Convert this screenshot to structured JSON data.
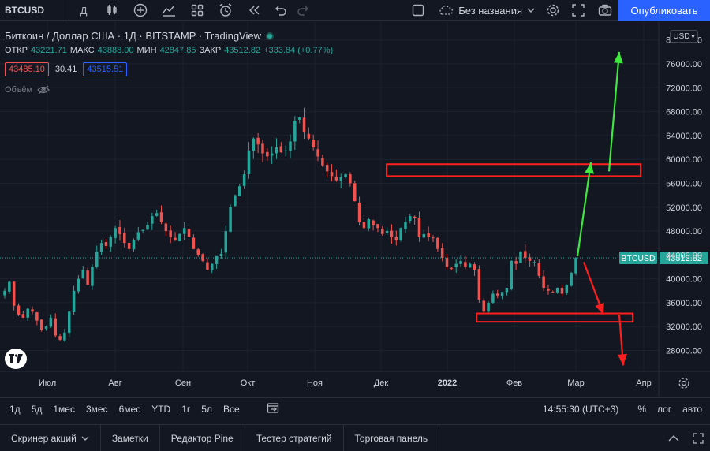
{
  "toolbar": {
    "symbol": "BTCUSD",
    "interval": "Д",
    "layout_name": "Без названия",
    "publish_label": "Опубликовать"
  },
  "legend": {
    "title": "Биткоин / Доллар США · 1Д · BITSTAMP · TradingView",
    "open_label": "ОТКР",
    "open": "43221.71",
    "high_label": "МАКС",
    "high": "43888.00",
    "low_label": "МИН",
    "low": "42847.85",
    "close_label": "ЗАКР",
    "close": "43512.82",
    "change": "+333.84 (+0.77%)",
    "bid": "43485.10",
    "spread": "30.41",
    "ask": "43515.51",
    "volume_label": "Объём"
  },
  "currency_button": "USD",
  "colors": {
    "background": "#131722",
    "up": "#26a69a",
    "down": "#ef5350",
    "annotation_red": "#ff1f1f",
    "annotation_green": "#3ee83e",
    "price_tag": "#26a69a"
  },
  "chart_data": {
    "type": "candlestick",
    "symbol_tag": "BTCUSD",
    "last_price": 43512.82,
    "last_price_label": "43512.82",
    "ylim": [
      24500,
      83000
    ],
    "y_ticks": [
      28000,
      32000,
      36000,
      40000,
      44000,
      48000,
      52000,
      56000,
      60000,
      64000,
      68000,
      72000,
      76000,
      80000
    ],
    "y_tick_labels": [
      "28000.00",
      "32000.00",
      "36000.00",
      "40000.00",
      "44000.00",
      "48000.00",
      "52000.00",
      "56000.00",
      "60000.00",
      "64000.00",
      "68000.00",
      "72000.00",
      "76000.00",
      "80000.00"
    ],
    "x_labels": [
      "Июл",
      "Авг",
      "Сен",
      "Окт",
      "Ноя",
      "Дек",
      "2022",
      "Фев",
      "Мар",
      "Апр"
    ],
    "close_series_approx": [
      38000,
      39500,
      35500,
      34000,
      33500,
      35000,
      34500,
      33000,
      31500,
      32000,
      33500,
      30500,
      29800,
      31000,
      34500,
      38000,
      40000,
      41500,
      39000,
      42000,
      44500,
      46000,
      45500,
      47000,
      48500,
      47500,
      46000,
      45000,
      46500,
      47800,
      48200,
      49000,
      50500,
      51000,
      49500,
      48000,
      47000,
      46500,
      47500,
      48500,
      47000,
      45000,
      44000,
      43000,
      41500,
      42500,
      43800,
      44200,
      48000,
      52000,
      54000,
      55500,
      57500,
      61500,
      63500,
      62500,
      61000,
      60500,
      61000,
      62000,
      61200,
      61500,
      63000,
      66500,
      67000,
      64500,
      63500,
      62000,
      60500,
      59000,
      58000,
      57200,
      56500,
      57000,
      57500,
      56000,
      53000,
      49500,
      48500,
      50000,
      49000,
      48500,
      47500,
      48000,
      47000,
      46500,
      48500,
      49500,
      50500,
      50200,
      47000,
      47500,
      47000,
      46800,
      45000,
      43500,
      42000,
      41800,
      42500,
      43000,
      42000,
      42500,
      41500,
      36500,
      34500,
      36000,
      37500,
      37200,
      37800,
      38500,
      43000,
      42500,
      44500,
      43500,
      43000,
      42800,
      40500,
      38500,
      38000,
      37800,
      38500,
      37500,
      39000,
      41000,
      43500
    ],
    "annotations": [
      {
        "kind": "resistance-zone",
        "from": 57200,
        "to": 59200
      },
      {
        "kind": "support-zone",
        "from": 32800,
        "to": 34200
      },
      {
        "kind": "arrow-up",
        "target": 78000
      },
      {
        "kind": "arrow-down",
        "target": 34000
      },
      {
        "kind": "arrow-down",
        "target": 25500
      }
    ]
  },
  "range_bar": {
    "items": [
      "1д",
      "5д",
      "1мес",
      "3мес",
      "6мес",
      "YTD",
      "1г",
      "5л",
      "Все"
    ],
    "clock": "14:55:30 (UTC+3)",
    "percent": "%",
    "log": "лог",
    "auto": "авто"
  },
  "panels": {
    "items": [
      "Скринер акций",
      "Заметки",
      "Редактор Pine",
      "Тестер стратегий",
      "Торговая панель"
    ]
  }
}
